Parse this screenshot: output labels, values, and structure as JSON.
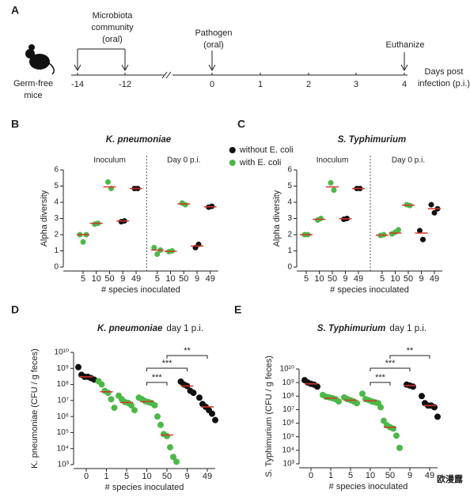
{
  "timeline": {
    "panel": "A",
    "ticks": [
      -14,
      -12,
      0,
      1,
      2,
      3,
      4
    ],
    "mouse_label": [
      "Germ-free",
      "mice"
    ],
    "microbiota_label": [
      "Microbiota",
      "community",
      "(oral)"
    ],
    "pathogen_label": [
      "Pathogen",
      "(oral)"
    ],
    "end_label": "Euthanize",
    "axis_label": [
      "Days post",
      "infection (p.i.)"
    ]
  },
  "chart_data": [
    {
      "panel": "B",
      "type": "dot",
      "title": "K. pneumoniae",
      "groups": [
        "Inoculum",
        "Day 0 p.i."
      ],
      "categories": [
        "5",
        "10",
        "50",
        "9",
        "49",
        "5",
        "10",
        "50",
        "9",
        "49"
      ],
      "xlabel": "# species inoculated",
      "ylabel": "Alpha diversity",
      "ylim": [
        0,
        6
      ],
      "yticks": [
        0,
        1,
        2,
        3,
        4,
        5,
        6
      ],
      "legend": "right",
      "series": [
        {
          "name": "without E. coli",
          "color": "#111111",
          "values": [
            null,
            null,
            null,
            [
              2.8,
              2.85
            ],
            [
              4.85,
              4.85
            ],
            null,
            null,
            null,
            [
              1.2,
              1.4
            ],
            [
              3.7,
              3.75
            ]
          ]
        },
        {
          "name": "with E. coli",
          "color": "#4cb848",
          "values": [
            [
              2.0,
              1.55,
              2.0
            ],
            [
              2.65,
              2.7
            ],
            [
              5.25,
              4.85
            ],
            null,
            null,
            [
              1.2,
              0.8,
              1.05
            ],
            [
              0.95,
              1.0
            ],
            [
              3.95,
              3.85
            ],
            null,
            null
          ]
        }
      ],
      "medians": [
        2.0,
        2.7,
        4.95,
        2.85,
        4.85,
        1.05,
        0.97,
        3.9,
        1.3,
        3.72
      ],
      "median_color": "#d9342b"
    },
    {
      "panel": "C",
      "type": "dot",
      "title": "S. Typhimurium",
      "groups": [
        "Inoculum",
        "Day 0 p.i."
      ],
      "categories": [
        "5",
        "10",
        "50",
        "9",
        "49",
        "5",
        "10",
        "50",
        "9",
        "49"
      ],
      "xlabel": "# species inoculated",
      "ylabel": "Alpha diversity",
      "ylim": [
        0,
        6
      ],
      "yticks": [
        0,
        1,
        2,
        3,
        4,
        5,
        6
      ],
      "series": [
        {
          "color": "#111111",
          "values": [
            null,
            null,
            null,
            [
              2.95,
              3.0
            ],
            [
              4.85,
              4.85
            ],
            null,
            null,
            null,
            [
              2.25,
              1.7
            ],
            [
              3.85,
              3.35,
              3.6
            ]
          ]
        },
        {
          "color": "#4cb848",
          "values": [
            [
              2.0,
              2.0
            ],
            [
              2.9,
              3.0
            ],
            [
              5.2,
              4.75
            ],
            null,
            null,
            [
              1.95,
              2.0
            ],
            [
              2.05,
              2.15,
              2.3
            ],
            [
              3.85,
              3.8
            ],
            null,
            null
          ]
        }
      ],
      "medians": [
        2.0,
        2.95,
        4.95,
        2.98,
        4.85,
        1.97,
        2.1,
        3.82,
        2.1,
        3.6
      ],
      "median_color": "#d9342b"
    },
    {
      "panel": "D",
      "type": "dot",
      "title": "K. pneumoniae",
      "subtitle": "day 1 p.i.",
      "categories": [
        "0",
        "1",
        "5",
        "10",
        "50",
        "9",
        "49"
      ],
      "xlabel": "# species inoculated",
      "ylabel": "K. pneumoniae (CFU / g feces)",
      "log": true,
      "ylim": [
        1000,
        10000000000.0
      ],
      "yticks": [
        {
          "value": 1000,
          "label": "10³"
        },
        {
          "value": 10000,
          "label": "10⁴"
        },
        {
          "value": 100000,
          "label": "10⁵"
        },
        {
          "value": 1000000,
          "label": "10⁶"
        },
        {
          "value": 10000000,
          "label": "10⁷"
        },
        {
          "value": 100000000,
          "label": "10⁸"
        },
        {
          "value": 1000000000,
          "label": "10⁹"
        },
        {
          "value": 10000000000,
          "label": "10¹⁰"
        }
      ],
      "series": [
        {
          "color": "#111111",
          "values": [
            [
              1200000000.0,
              400000000.0,
              300000000.0,
              300000000.0,
              250000000.0,
              200000000.0
            ],
            null,
            null,
            null,
            null,
            [
              150000000.0,
              100000000.0,
              80000000.0,
              40000000.0,
              30000000.0
            ],
            [
              15000000.0,
              6000000.0,
              4000000.0,
              2500000.0,
              1500000.0,
              600000.0
            ]
          ]
        },
        {
          "color": "#4cb848",
          "values": [
            null,
            [
              160000000.0,
              100000000.0,
              40000000.0,
              30000000.0,
              12000000.0,
              3500000.0
            ],
            [
              20000000.0,
              12000000.0,
              8000000.0,
              7000000.0,
              5000000.0,
              2500000.0
            ],
            [
              15000000.0,
              12000000.0,
              9000000.0,
              8000000.0,
              7000000.0,
              5000000.0
            ],
            [
              1000000.0,
              300000.0,
              80000.0,
              60000.0,
              12000.0,
              3000.0,
              1500.0
            ],
            null,
            null
          ]
        }
      ],
      "medians": [
        300000000.0,
        35000000.0,
        7500000.0,
        8500000.0,
        70000.0,
        80000000.0,
        4000000.0
      ],
      "median_color": "#d9342b",
      "significance": [
        {
          "between": [
            "10",
            "50"
          ],
          "label": "***"
        },
        {
          "between": [
            "10",
            "9"
          ],
          "label": "***"
        },
        {
          "between": [
            "50",
            "49"
          ],
          "label": "**"
        }
      ]
    },
    {
      "panel": "E",
      "type": "dot",
      "title": "S. Typhimurium",
      "subtitle": "day 1 p.i.",
      "categories": [
        "0",
        "1",
        "5",
        "10",
        "50",
        "9",
        "49"
      ],
      "xlabel": "# species inoculated",
      "ylabel": "S. Typhimurium (CFU / g feces)",
      "log": true,
      "ylim": [
        1000,
        10000000000.0
      ],
      "yticks": [
        {
          "value": 1000,
          "label": "10³"
        },
        {
          "value": 10000,
          "label": "10⁴"
        },
        {
          "value": 100000,
          "label": "10⁵"
        },
        {
          "value": 1000000,
          "label": "10⁶"
        },
        {
          "value": 10000000,
          "label": "10⁷"
        },
        {
          "value": 100000000,
          "label": "10⁸"
        },
        {
          "value": 1000000000,
          "label": "10⁹"
        },
        {
          "value": 10000000000,
          "label": "10¹⁰"
        }
      ],
      "series": [
        {
          "color": "#111111",
          "values": [
            [
              1500000000.0,
              1000000000.0,
              800000000.0,
              700000000.0,
              500000000.0
            ],
            null,
            null,
            null,
            null,
            [
              700000000.0,
              600000000.0,
              500000000.0
            ],
            [
              100000000.0,
              30000000.0,
              20000000.0,
              20000000.0,
              15000000.0,
              3000000.0
            ]
          ]
        },
        {
          "color": "#4cb848",
          "values": [
            null,
            [
              120000000.0,
              90000000.0,
              80000000.0,
              70000000.0,
              60000000.0,
              40000000.0
            ],
            [
              80000000.0,
              60000000.0,
              50000000.0,
              40000000.0,
              30000000.0
            ],
            [
              150000000.0,
              60000000.0,
              50000000.0,
              40000000.0,
              35000000.0,
              30000000.0
            ],
            [
              15000000.0,
              1500000.0,
              700000.0,
              500000.0,
              400000.0,
              120000.0,
              15000.0
            ],
            null,
            null
          ]
        }
      ],
      "medians": [
        800000000.0,
        70000000.0,
        50000000.0,
        45000000.0,
        500000.0,
        600000000.0,
        20000000.0
      ],
      "median_color": "#d9342b",
      "significance": [
        {
          "between": [
            "10",
            "50"
          ],
          "label": "***"
        },
        {
          "between": [
            "10",
            "9"
          ],
          "label": "***"
        },
        {
          "between": [
            "50",
            "49"
          ],
          "label": "**"
        }
      ]
    }
  ],
  "watermark": "欧漫露"
}
